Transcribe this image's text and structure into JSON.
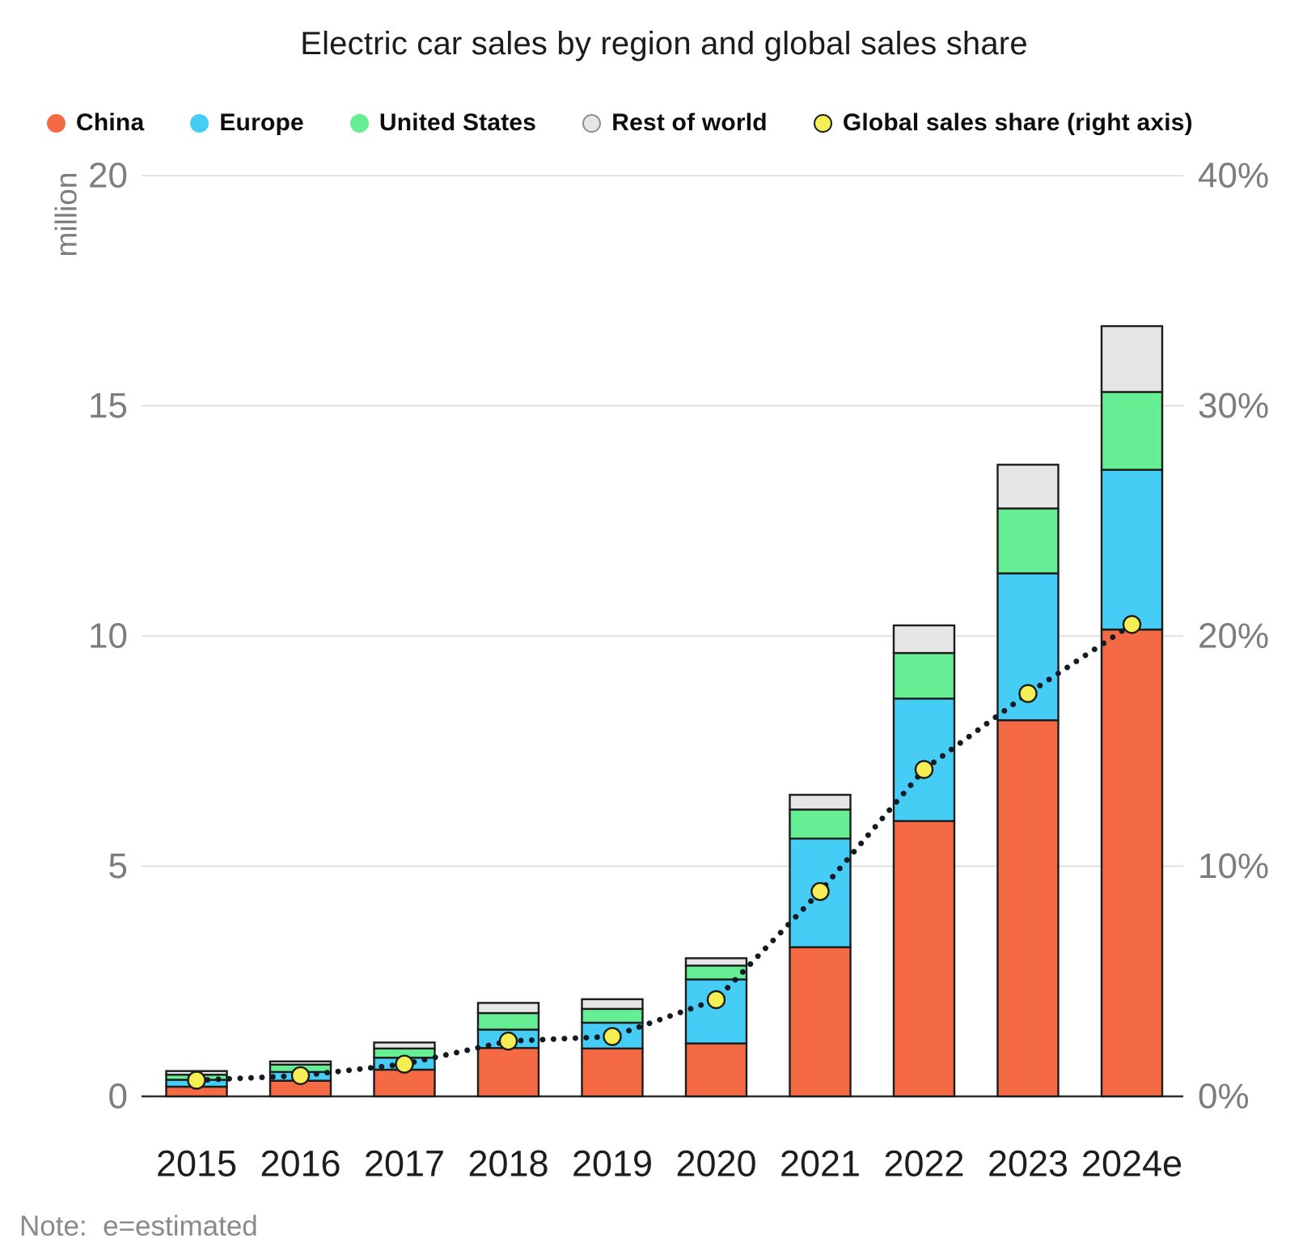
{
  "title": "Electric car sales by region and global sales share",
  "note": "Note:  e=estimated",
  "legend": {
    "items": [
      {
        "label": "China",
        "color": "#F46A45",
        "border": ""
      },
      {
        "label": "Europe",
        "color": "#45CDF5",
        "border": ""
      },
      {
        "label": "United States",
        "color": "#66EE94",
        "border": ""
      },
      {
        "label": "Rest of world",
        "color": "#E6E6E7",
        "border": "#8f8f8f"
      },
      {
        "label": "Global sales share (right axis)",
        "color": "#F6EE55",
        "border": "#1b1b1b"
      }
    ]
  },
  "y_axis": {
    "unit": "million",
    "max": 20,
    "ticks": [
      0,
      5,
      10,
      15,
      20
    ],
    "tick_labels": [
      "0",
      "5",
      "10",
      "15",
      "20"
    ]
  },
  "y2_axis": {
    "max": 40,
    "tick_labels": [
      "0%",
      "10%",
      "20%",
      "30%",
      "40%"
    ]
  },
  "chart_data": {
    "type": "bar",
    "subtype": "stacked-with-line",
    "title": "Electric car sales by region and global sales share",
    "xlabel": "",
    "ylabel": "million",
    "y2label": "Global sales share",
    "ylim": [
      0,
      20
    ],
    "y2lim_pct": [
      0,
      40
    ],
    "grid": "horizontal",
    "legend_position": "top",
    "categories": [
      "2015",
      "2016",
      "2017",
      "2018",
      "2019",
      "2020",
      "2021",
      "2022",
      "2023",
      "2024e"
    ],
    "series": [
      {
        "name": "China",
        "color": "#F46A45",
        "values": [
          0.21,
          0.34,
          0.58,
          1.05,
          1.04,
          1.15,
          3.24,
          5.98,
          8.17,
          10.14
        ]
      },
      {
        "name": "Europe",
        "color": "#45CDF5",
        "values": [
          0.15,
          0.19,
          0.26,
          0.4,
          0.56,
          1.39,
          2.36,
          2.66,
          3.19,
          3.47
        ]
      },
      {
        "name": "United States",
        "color": "#66EE94",
        "values": [
          0.11,
          0.16,
          0.2,
          0.36,
          0.3,
          0.3,
          0.63,
          0.99,
          1.41,
          1.69
        ]
      },
      {
        "name": "Rest of world",
        "color": "#E6E6E7",
        "values": [
          0.08,
          0.07,
          0.13,
          0.22,
          0.21,
          0.16,
          0.32,
          0.6,
          0.95,
          1.43
        ]
      }
    ],
    "line_series": {
      "name": "Global sales share (right axis)",
      "marker_color": "#F6EE55",
      "line_color": "#131a22",
      "values_pct": [
        0.7,
        0.9,
        1.4,
        2.4,
        2.6,
        4.2,
        8.9,
        14.2,
        17.5,
        20.5
      ]
    },
    "colors": {
      "bar_outline": "#1c1c1c",
      "gridline": "#d8d8d8",
      "baseline": "#2e2e2e",
      "tick_text": "#7d7d7d",
      "year_text": "#1d1d1d"
    }
  }
}
